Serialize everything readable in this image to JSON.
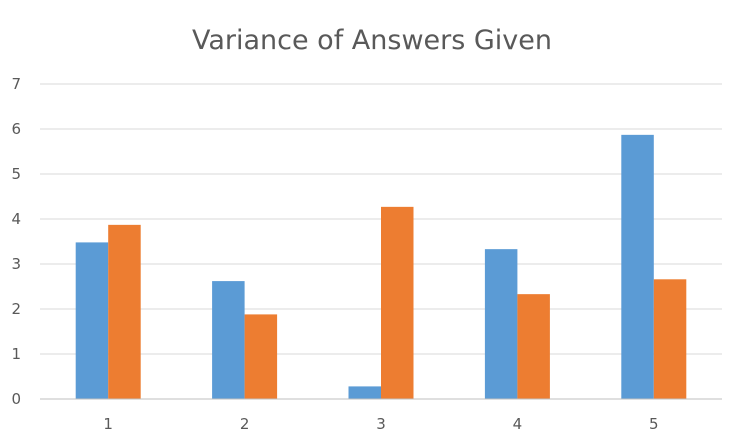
{
  "chart_data": {
    "type": "bar",
    "title": "Variance of Answers Given",
    "xlabel": "",
    "ylabel": "",
    "categories": [
      "1",
      "2",
      "3",
      "4",
      "5"
    ],
    "series": [
      {
        "values": [
          3.48,
          2.62,
          0.28,
          3.33,
          5.87
        ],
        "color": "#5b9bd5"
      },
      {
        "values": [
          3.87,
          1.88,
          4.27,
          2.33,
          2.66
        ],
        "color": "#ed7d31"
      }
    ],
    "ylim": [
      0,
      7
    ],
    "yticks": [
      "0",
      "1",
      "2",
      "3",
      "4",
      "5",
      "6",
      "7"
    ],
    "grid": true,
    "legend": "none"
  }
}
